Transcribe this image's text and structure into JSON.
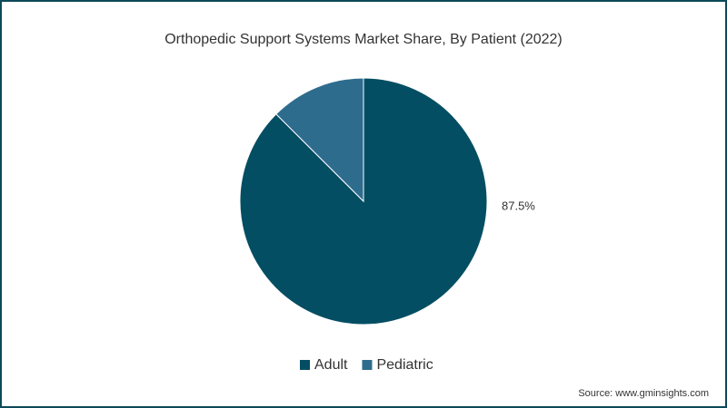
{
  "chart_data": {
    "type": "pie",
    "title": "Orthopedic Support Systems Market Share, By Patient (2022)",
    "categories": [
      "Adult",
      "Pediatric"
    ],
    "values": [
      87.5,
      12.5
    ],
    "value_labels": [
      "87.5%",
      null
    ],
    "colors": [
      "#044e63",
      "#2e6c8e"
    ],
    "legend": "bottom",
    "source": "Source: www.gminsights.com"
  }
}
